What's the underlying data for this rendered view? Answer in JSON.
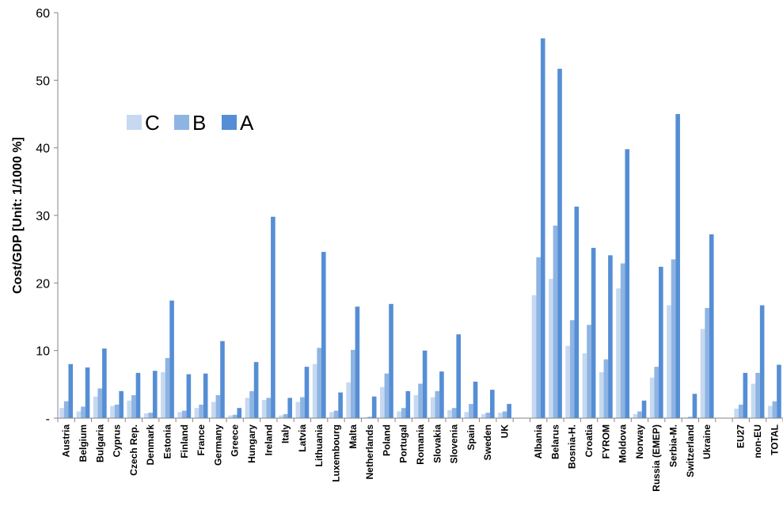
{
  "chart_data": {
    "type": "bar",
    "title": "",
    "xlabel": "",
    "ylabel": "Cost/GDP [Unit: 1/1000 %]",
    "ylim": [
      0,
      60
    ],
    "yticks": [
      0,
      10,
      20,
      30,
      40,
      50,
      60
    ],
    "ytick_labels": [
      "-",
      "10",
      "20",
      "30",
      "40",
      "50",
      "60"
    ],
    "grid": false,
    "legend": "inside-top-left",
    "categories": [
      "Austria",
      "Belgium",
      "Bulgaria",
      "Cyprus",
      "Czech Rep.",
      "Denmark",
      "Estonia",
      "Finland",
      "France",
      "Germany",
      "Greece",
      "Hungary",
      "Ireland",
      "Italy",
      "Latvia",
      "Lithuania",
      "Luxembourg",
      "Malta",
      "Netherlands",
      "Poland",
      "Portugal",
      "Romania",
      "Slovakia",
      "Slovenia",
      "Spain",
      "Sweden",
      "UK",
      "",
      "Albania",
      "Belarus",
      "Bosnia-H.",
      "Croatia",
      "FYROM",
      "Moldova",
      "Norway",
      "Russia (EMEP)",
      "Serbia-M.",
      "Switzerland",
      "Ukraine",
      "",
      "EU27",
      "non-EU",
      "TOTAL"
    ],
    "series": [
      {
        "name": "C",
        "color": "#C6D9F1",
        "values": [
          1.5,
          1.0,
          3.2,
          1.8,
          2.6,
          0.7,
          6.8,
          0.9,
          1.5,
          2.4,
          0.4,
          3.0,
          2.7,
          0.4,
          2.4,
          8.0,
          0.9,
          5.3,
          0.1,
          4.6,
          1.0,
          3.4,
          3.1,
          1.2,
          0.9,
          0.6,
          0.8,
          null,
          18.2,
          20.6,
          10.7,
          9.6,
          6.8,
          19.2,
          0.6,
          6.0,
          16.7,
          0.1,
          13.2,
          null,
          1.4,
          5.1,
          1.8
        ]
      },
      {
        "name": "B",
        "color": "#8EB4E3",
        "values": [
          2.5,
          1.7,
          4.4,
          2.0,
          3.4,
          0.8,
          8.9,
          1.1,
          2.0,
          3.4,
          0.5,
          4.0,
          3.0,
          0.6,
          3.1,
          10.4,
          1.1,
          10.1,
          0.2,
          6.6,
          1.5,
          5.1,
          4.0,
          1.5,
          2.1,
          0.8,
          1.0,
          null,
          23.8,
          28.5,
          14.5,
          13.8,
          8.7,
          22.9,
          1.0,
          7.6,
          23.5,
          0.2,
          16.3,
          null,
          2.0,
          6.7,
          2.5
        ]
      },
      {
        "name": "A",
        "color": "#558ED5",
        "values": [
          8.0,
          7.5,
          10.3,
          4.0,
          6.7,
          7.0,
          17.4,
          6.5,
          6.6,
          11.4,
          1.5,
          8.3,
          29.8,
          3.0,
          7.6,
          24.6,
          3.8,
          16.5,
          3.2,
          16.9,
          4.0,
          10.0,
          6.9,
          12.4,
          5.4,
          4.2,
          2.1,
          null,
          56.2,
          51.7,
          31.3,
          25.2,
          24.1,
          39.8,
          2.6,
          22.4,
          45.0,
          3.6,
          27.2,
          null,
          6.7,
          16.7,
          7.9
        ]
      }
    ]
  }
}
